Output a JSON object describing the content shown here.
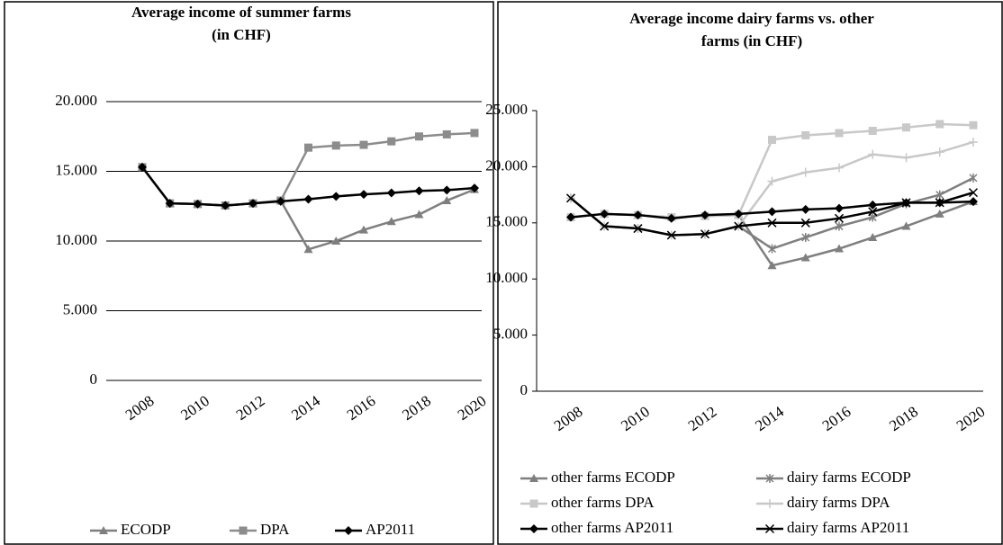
{
  "chart_data": [
    {
      "type": "line",
      "title": "Average income of summer farms\n(in CHF)",
      "categories": [
        "2008",
        null,
        "2010",
        null,
        "2012",
        null,
        "2014",
        null,
        "2016",
        null,
        "2018",
        null,
        "2020"
      ],
      "ylim": [
        0,
        20000
      ],
      "yticks": [
        0,
        {
          "value": 5000,
          "label": "5.000"
        },
        {
          "value": 10000,
          "label": "10.000"
        },
        {
          "value": 15000,
          "label": "15.000"
        },
        {
          "value": 20000,
          "label": "20.000"
        }
      ],
      "grid": true,
      "legend": "bottom",
      "series": [
        {
          "name": "ECODP",
          "color": "#7f7f7f",
          "marker": "triangle",
          "values": [
            15300,
            12700,
            12650,
            12550,
            12700,
            12900,
            9400,
            10000,
            10800,
            11400,
            11900,
            12900,
            13700
          ]
        },
        {
          "name": "DPA",
          "color": "#8c8c8c",
          "marker": "square",
          "values": [
            15300,
            12700,
            12650,
            12550,
            12700,
            12900,
            16700,
            16850,
            16900,
            17150,
            17500,
            17650,
            17750
          ]
        },
        {
          "name": "AP2011",
          "color": "#000000",
          "marker": "diamond",
          "values": [
            15300,
            12700,
            12650,
            12550,
            12700,
            12850,
            13000,
            13200,
            13350,
            13450,
            13600,
            13650,
            13800
          ]
        }
      ]
    },
    {
      "type": "line",
      "title": "Average income dairy farms vs. other\nfarms (in CHF)",
      "categories": [
        "2008",
        null,
        "2010",
        null,
        "2012",
        null,
        "2014",
        null,
        "2016",
        null,
        "2018",
        null,
        "2020"
      ],
      "ylim": [
        0,
        25000
      ],
      "yticks": [
        0,
        {
          "value": 5000,
          "label": "5.000"
        },
        {
          "value": 10000,
          "label": "10.000"
        },
        {
          "value": 15000,
          "label": "15.000"
        },
        {
          "value": 20000,
          "label": "20.000"
        },
        {
          "value": 25000,
          "label": "25.000"
        }
      ],
      "grid": false,
      "legend": "bottom",
      "series": [
        {
          "name": "other farms ECODP",
          "color": "#7f7f7f",
          "marker": "triangle",
          "values": [
            15500,
            15800,
            15700,
            15500,
            15600,
            15700,
            11200,
            11900,
            12700,
            13700,
            14700,
            15800,
            16900
          ]
        },
        {
          "name": "dairy farms ECODP",
          "color": "#7f7f7f",
          "marker": "star",
          "values": [
            17200,
            14700,
            14500,
            13900,
            14000,
            14700,
            12700,
            13700,
            14700,
            15500,
            16700,
            17500,
            19000
          ]
        },
        {
          "name": "other farms DPA",
          "color": "#c8c8c8",
          "marker": "square",
          "values": [
            15500,
            15800,
            15700,
            15500,
            15600,
            15700,
            22400,
            22800,
            23000,
            23200,
            23500,
            23800,
            23700
          ]
        },
        {
          "name": "dairy farms DPA",
          "color": "#c8c8c8",
          "marker": "plus",
          "values": [
            17200,
            14700,
            14500,
            13900,
            14000,
            14700,
            18700,
            19500,
            19900,
            21100,
            20800,
            21300,
            22200
          ]
        },
        {
          "name": "other farms AP2011",
          "color": "#000000",
          "marker": "diamond",
          "values": [
            15500,
            15800,
            15700,
            15400,
            15700,
            15800,
            16000,
            16200,
            16300,
            16600,
            16800,
            16800,
            16900
          ]
        },
        {
          "name": "dairy farms AP2011",
          "color": "#000000",
          "marker": "x",
          "values": [
            17200,
            14700,
            14500,
            13900,
            14000,
            14700,
            15000,
            15000,
            15400,
            16000,
            16800,
            16800,
            17700
          ]
        }
      ]
    }
  ]
}
